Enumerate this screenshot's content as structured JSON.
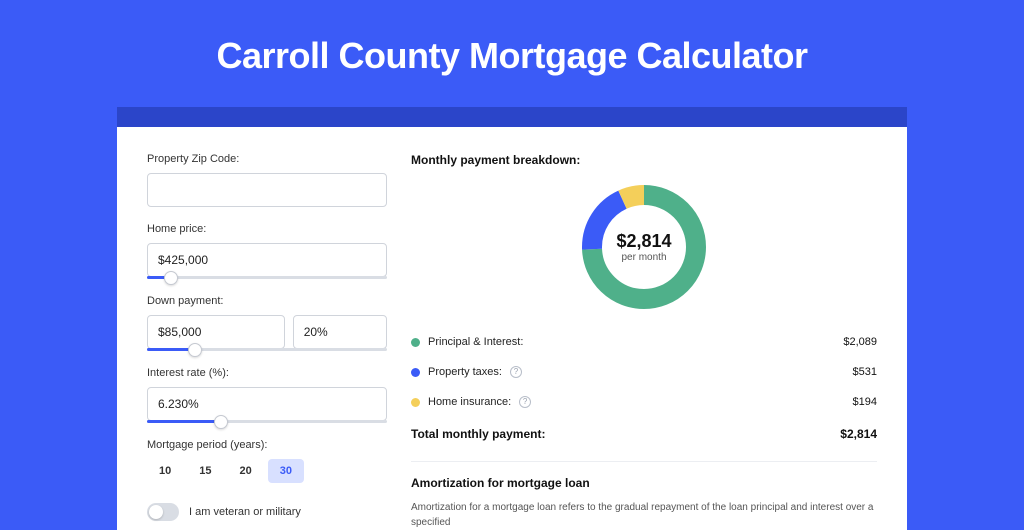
{
  "page": {
    "title": "Carroll County Mortgage Calculator",
    "background_color": "#3b5bf7",
    "accent_color": "#3b5bf7",
    "strip_color": "#2b45c9"
  },
  "form": {
    "zip": {
      "label": "Property Zip Code:",
      "value": ""
    },
    "home_price": {
      "label": "Home price:",
      "value": "$425,000",
      "slider_pct": 10
    },
    "down_payment": {
      "label": "Down payment:",
      "amount": "$85,000",
      "percent": "20%",
      "slider_pct": 20
    },
    "interest_rate": {
      "label": "Interest rate (%):",
      "value": "6.230%",
      "slider_pct": 31
    },
    "period": {
      "label": "Mortgage period (years):",
      "options": [
        "10",
        "15",
        "20",
        "30"
      ],
      "active": "30"
    },
    "veteran": {
      "label": "I am veteran or military",
      "enabled": false
    }
  },
  "breakdown": {
    "title": "Monthly payment breakdown:",
    "donut": {
      "amount": "$2,814",
      "sub": "per month",
      "size": 124,
      "stroke": 20,
      "slices": [
        {
          "key": "principal_interest",
          "value": 2089,
          "color": "#4fb08a"
        },
        {
          "key": "property_taxes",
          "value": 531,
          "color": "#3b5bf7"
        },
        {
          "key": "home_insurance",
          "value": 194,
          "color": "#f4cf5a"
        }
      ]
    },
    "items": [
      {
        "label": "Principal & Interest:",
        "value": "$2,089",
        "color": "#4fb08a",
        "info": false
      },
      {
        "label": "Property taxes:",
        "value": "$531",
        "color": "#3b5bf7",
        "info": true
      },
      {
        "label": "Home insurance:",
        "value": "$194",
        "color": "#f4cf5a",
        "info": true
      }
    ],
    "total": {
      "label": "Total monthly payment:",
      "value": "$2,814"
    }
  },
  "amortization": {
    "title": "Amortization for mortgage loan",
    "text": "Amortization for a mortgage loan refers to the gradual repayment of the loan principal and interest over a specified"
  }
}
